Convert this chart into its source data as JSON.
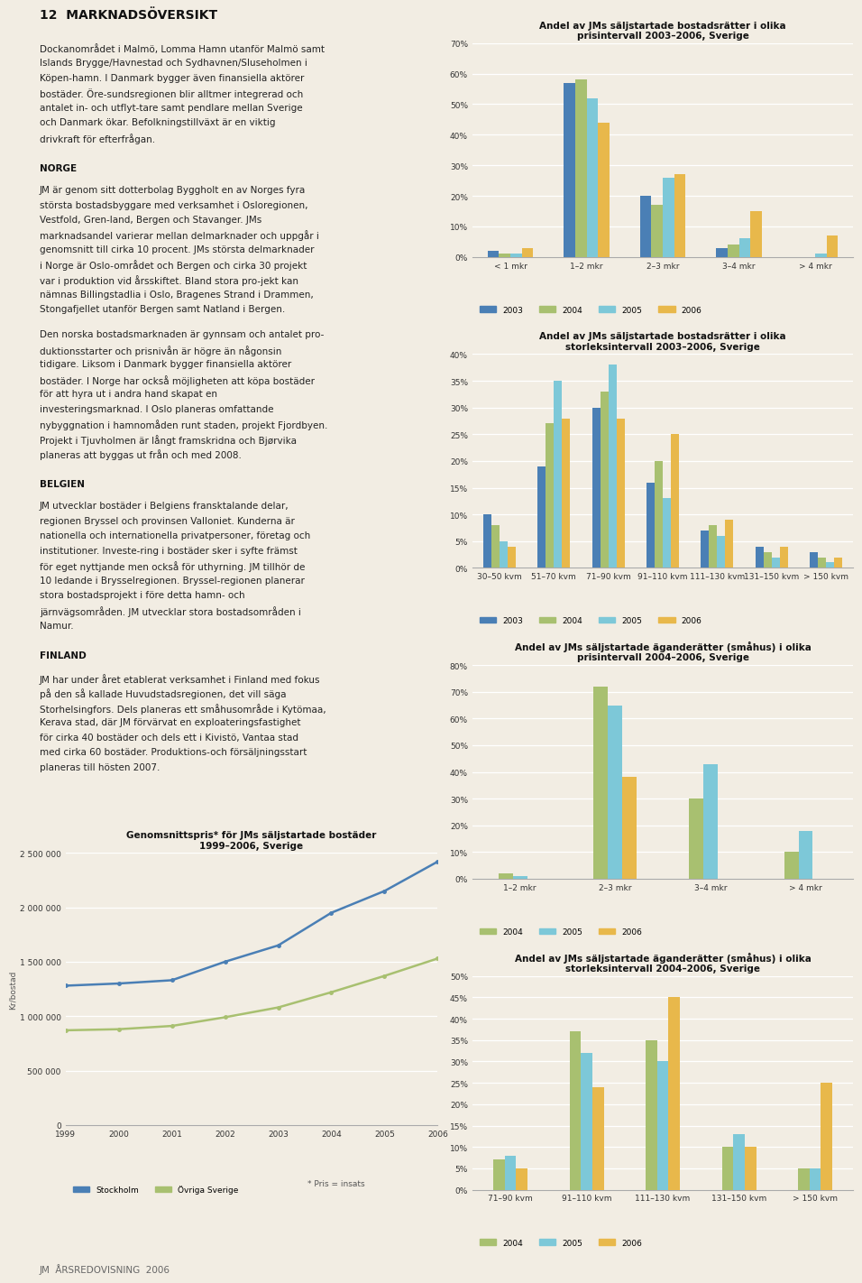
{
  "page_bg": "#f2ede3",
  "chart_bg": "#f2ede3",
  "text_color": "#1a1a1a",
  "colors": {
    "2003": "#4a7fb5",
    "2004": "#a8c070",
    "2005": "#7dc8d8",
    "2006": "#e8b84b"
  },
  "chart1": {
    "title": "Andel av JMs säljstartade bostadsrätter i olika\nprisintervall 2003–2006, Sverige",
    "categories": [
      "< 1 mkr",
      "1–2 mkr",
      "2–3 mkr",
      "3–4 mkr",
      "> 4 mkr"
    ],
    "ylim": [
      0,
      70
    ],
    "yticks": [
      0,
      10,
      20,
      30,
      40,
      50,
      60,
      70
    ],
    "data": {
      "2003": [
        2,
        57,
        20,
        3,
        0
      ],
      "2004": [
        1,
        58,
        17,
        4,
        0
      ],
      "2005": [
        1,
        52,
        26,
        6,
        1
      ],
      "2006": [
        3,
        44,
        27,
        15,
        7
      ]
    }
  },
  "chart2": {
    "title": "Andel av JMs säljstartade bostadsrätter i olika\nstorleksintervall 2003–2006, Sverige",
    "categories": [
      "30–50 kvm",
      "51–70 kvm",
      "71–90 kvm",
      "91–110 kvm",
      "111–130 kvm",
      "131–150 kvm",
      "> 150 kvm"
    ],
    "ylim": [
      0,
      40
    ],
    "yticks": [
      0,
      5,
      10,
      15,
      20,
      25,
      30,
      35,
      40
    ],
    "data": {
      "2003": [
        10,
        19,
        30,
        16,
        7,
        4,
        3
      ],
      "2004": [
        8,
        27,
        33,
        20,
        8,
        3,
        2
      ],
      "2005": [
        5,
        35,
        38,
        13,
        6,
        2,
        1
      ],
      "2006": [
        4,
        28,
        28,
        25,
        9,
        4,
        2
      ]
    }
  },
  "chart3": {
    "title": "Andel av JMs säljstartade äganderätter (småhus) i olika\nprisintervall 2004–2006, Sverige",
    "categories": [
      "1–2 mkr",
      "2–3 mkr",
      "3–4 mkr",
      "> 4 mkr"
    ],
    "ylim": [
      0,
      80
    ],
    "yticks": [
      0,
      10,
      20,
      30,
      40,
      50,
      60,
      70,
      80
    ],
    "data": {
      "2004": [
        2,
        72,
        30,
        10
      ],
      "2005": [
        1,
        65,
        43,
        18
      ],
      "2006": [
        0,
        38,
        0,
        0
      ]
    }
  },
  "chart4": {
    "title": "Andel av JMs säljstartade äganderätter (småhus) i olika\nstorleksintervall 2004–2006, Sverige",
    "categories": [
      "71–90 kvm",
      "91–110 kvm",
      "111–130 kvm",
      "131–150 kvm",
      "> 150 kvm"
    ],
    "ylim": [
      0,
      50
    ],
    "yticks": [
      0,
      5,
      10,
      15,
      20,
      25,
      30,
      35,
      40,
      45,
      50
    ],
    "data": {
      "2004": [
        7,
        37,
        35,
        10,
        5
      ],
      "2005": [
        8,
        32,
        30,
        13,
        5
      ],
      "2006": [
        5,
        24,
        45,
        10,
        25
      ]
    }
  },
  "line_chart": {
    "title": "Genomsnittspris* för JMs säljstartade bostäder\n1999–2006, Sverige",
    "ylabel": "Kr/bostad",
    "ylim": [
      0,
      2500000
    ],
    "yticks": [
      0,
      500000,
      1000000,
      1500000,
      2000000,
      2500000
    ],
    "ytick_labels": [
      "0",
      "500 000",
      "1 000 000",
      "1 500 000",
      "2 000 000",
      "2 500 000"
    ],
    "years": [
      1999,
      2000,
      2001,
      2002,
      2003,
      2004,
      2005,
      2006
    ],
    "series": {
      "Stockholm": [
        1280000,
        1300000,
        1330000,
        1500000,
        1650000,
        1950000,
        2150000,
        2420000
      ],
      "Övriga Sverige": [
        870000,
        880000,
        910000,
        990000,
        1080000,
        1220000,
        1370000,
        1530000
      ]
    },
    "line_colors": {
      "Stockholm": "#4a7fb5",
      "Övriga Sverige": "#a8c070"
    },
    "footnote": "* Pris = insats"
  },
  "text_blocks": [
    {
      "label": "",
      "body": "Dockanområdet i Malmö, Lomma Hamn utanför Malmö samt Islands Brygge/Havnestad och Sydhavnen/Sluseholmen i Köpen-hamn. I Danmark bygger även finansiella aktörer bostäder. Öre-sundsregionen blir alltmer integrerad och antalet in- och utflyt-tare samt pendlare mellan Sverige och Danmark ökar. Befolkningstillväxt är en viktig drivkraft för efterfrågan."
    },
    {
      "label": "NORGE",
      "body": "JM är genom sitt dotterbolag Byggholt en av Norges fyra största bostadsbyggare med verksamhet i Osloregionen, Vestfold, Gren-land, Bergen och Stavanger. JMs marknadsandel varierar mellan delmarknader och uppgår i genomsnitt till cirka 10 procent. JMs största delmarknader i Norge är Oslo-området och Bergen och cirka 30 projekt var i produktion vid årsskiftet. Bland stora pro-jekt kan nämnas Billingstadlia i Oslo, Bragenes Strand i Drammen, Stongafjellet utanför Bergen samt Natland i Bergen.\n\nDen norska bostadsmarknaden är gynnsam och antalet pro-duktionsstarter och prisnivån är högre än någonsin tidigare. Liksom i Danmark bygger finansiella aktörer bostäder. I Norge har också möjligheten att köpa bostäder för att hyra ut i andra hand skapat en investeringsmarknad. I Oslo planeras omfattande nybyggnation i hamnomåden runt staden, projekt Fjordbyen. Projekt i Tjuvholmen är långt framskridna och Bjørvika planeras att byggas ut från och med 2008."
    },
    {
      "label": "BELGIEN",
      "body": "JM utvecklar bostäder i Belgiens fransktalande delar, regionen Bryssel och provinsen Valloniet. Kunderna är nationella och internationella privatpersoner, företag och institutioner. Investe-ring i bostäder sker i syfte främst för eget nyttjande men också för uthyrning. JM tillhör de 10 ledande i Brysselregionen. Bryssel-regionen planerar stora bostadsprojekt i före detta hamn- och järnvägsområden. JM utvecklar stora bostadsområden i Namur."
    },
    {
      "label": "FINLAND",
      "body": "JM har under året etablerat verksamhet i Finland med fokus på den så kallade Huvudstadsregionen, det vill säga Storhelsingfors. Dels planeras ett småhusområde i Kytömaa, Kerava stad, där JM förvärvat en exploateringsfastighet för cirka 40 bostäder och dels ett i Kivistö, Vantaa stad med cirka 60 bostäder. Produktions-och försäljningsstart planeras till hösten 2007."
    }
  ],
  "header": "12  MARKNADSÖVERSIKT",
  "footer": "JM  ÅRSREDOVISNING  2006"
}
